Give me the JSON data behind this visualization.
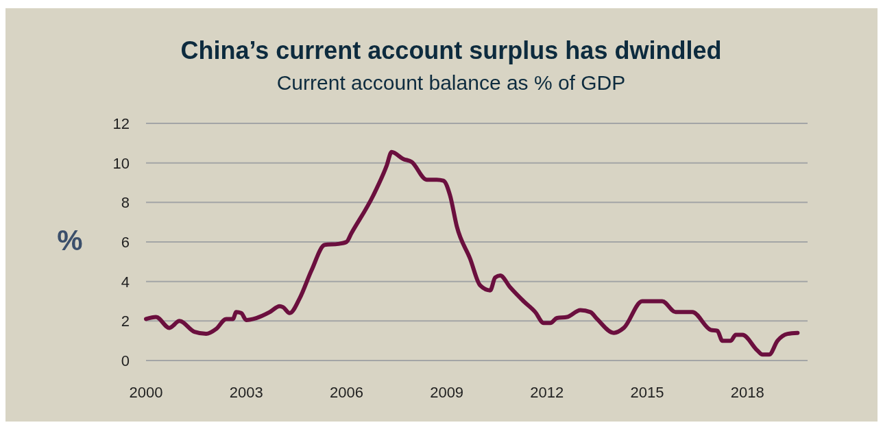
{
  "chart_data": {
    "type": "line",
    "title": "China’s current account surplus has dwindled",
    "subtitle": "Current account balance as % of GDP",
    "ylabel": "%",
    "series": [
      {
        "color": "#6b0f3e",
        "x": [
          2000,
          2000.3,
          2000.7,
          2001.0,
          2001.45,
          2001.8,
          2002.1,
          2002.4,
          2002.6,
          2002.7,
          2002.85,
          2003.0,
          2003.3,
          2003.7,
          2004.0,
          2004.1,
          2004.3,
          2004.6,
          2004.95,
          2005.35,
          2005.75,
          2006.0,
          2006.15,
          2006.8,
          2007.2,
          2007.35,
          2007.7,
          2007.95,
          2008.4,
          2008.7,
          2008.9,
          2009.1,
          2009.3,
          2009.7,
          2010.0,
          2010.3,
          2010.45,
          2010.6,
          2010.9,
          2011.3,
          2011.65,
          2011.9,
          2012.1,
          2012.3,
          2012.6,
          2013.0,
          2013.3,
          2013.5,
          2014.0,
          2014.3,
          2014.85,
          2015.45,
          2015.85,
          2016.35,
          2016.9,
          2017.1,
          2017.25,
          2017.5,
          2017.65,
          2017.85,
          2018.3,
          2018.45,
          2018.65,
          2018.9,
          2019.2,
          2019.5
        ],
        "values": [
          2.1,
          2.2,
          1.65,
          2.0,
          1.45,
          1.35,
          1.6,
          2.1,
          2.1,
          2.45,
          2.4,
          2.05,
          2.15,
          2.45,
          2.75,
          2.7,
          2.4,
          3.15,
          4.55,
          5.85,
          5.9,
          6.0,
          6.45,
          8.35,
          9.85,
          10.55,
          10.2,
          10.05,
          9.15,
          9.15,
          9.1,
          8.35,
          6.8,
          5.15,
          3.8,
          3.55,
          4.2,
          4.3,
          3.7,
          3.0,
          2.45,
          1.9,
          1.9,
          2.15,
          2.2,
          2.55,
          2.45,
          2.1,
          1.4,
          1.65,
          3.0,
          3.0,
          2.45,
          2.45,
          1.55,
          1.5,
          1.0,
          1.0,
          1.3,
          1.3,
          0.5,
          0.3,
          0.3,
          1.0,
          1.35,
          1.4
        ]
      }
    ],
    "xlim": [
      2000,
      2019.8
    ],
    "xticks": [
      2000,
      2003,
      2006,
      2009,
      2012,
      2015,
      2018
    ],
    "ylim": [
      0,
      12
    ],
    "yticks": [
      0,
      2,
      4,
      6,
      8,
      10,
      12
    ],
    "grid": "y",
    "line_style": "solid",
    "marker": "none"
  }
}
